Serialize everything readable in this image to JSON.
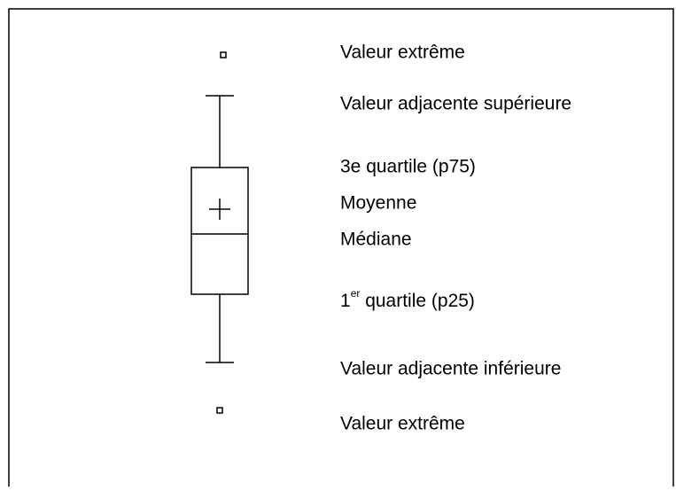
{
  "labels": [
    "Valeur extrême",
    "Valeur adjacente supérieure",
    "3e quartile (p75)",
    "Moyenne",
    "Médiane",
    {
      "number": "1",
      "sup": "er",
      "text": " quartile (p25)"
    },
    "Valeur adjacente inférieure",
    "Valeur extrême"
  ]
}
